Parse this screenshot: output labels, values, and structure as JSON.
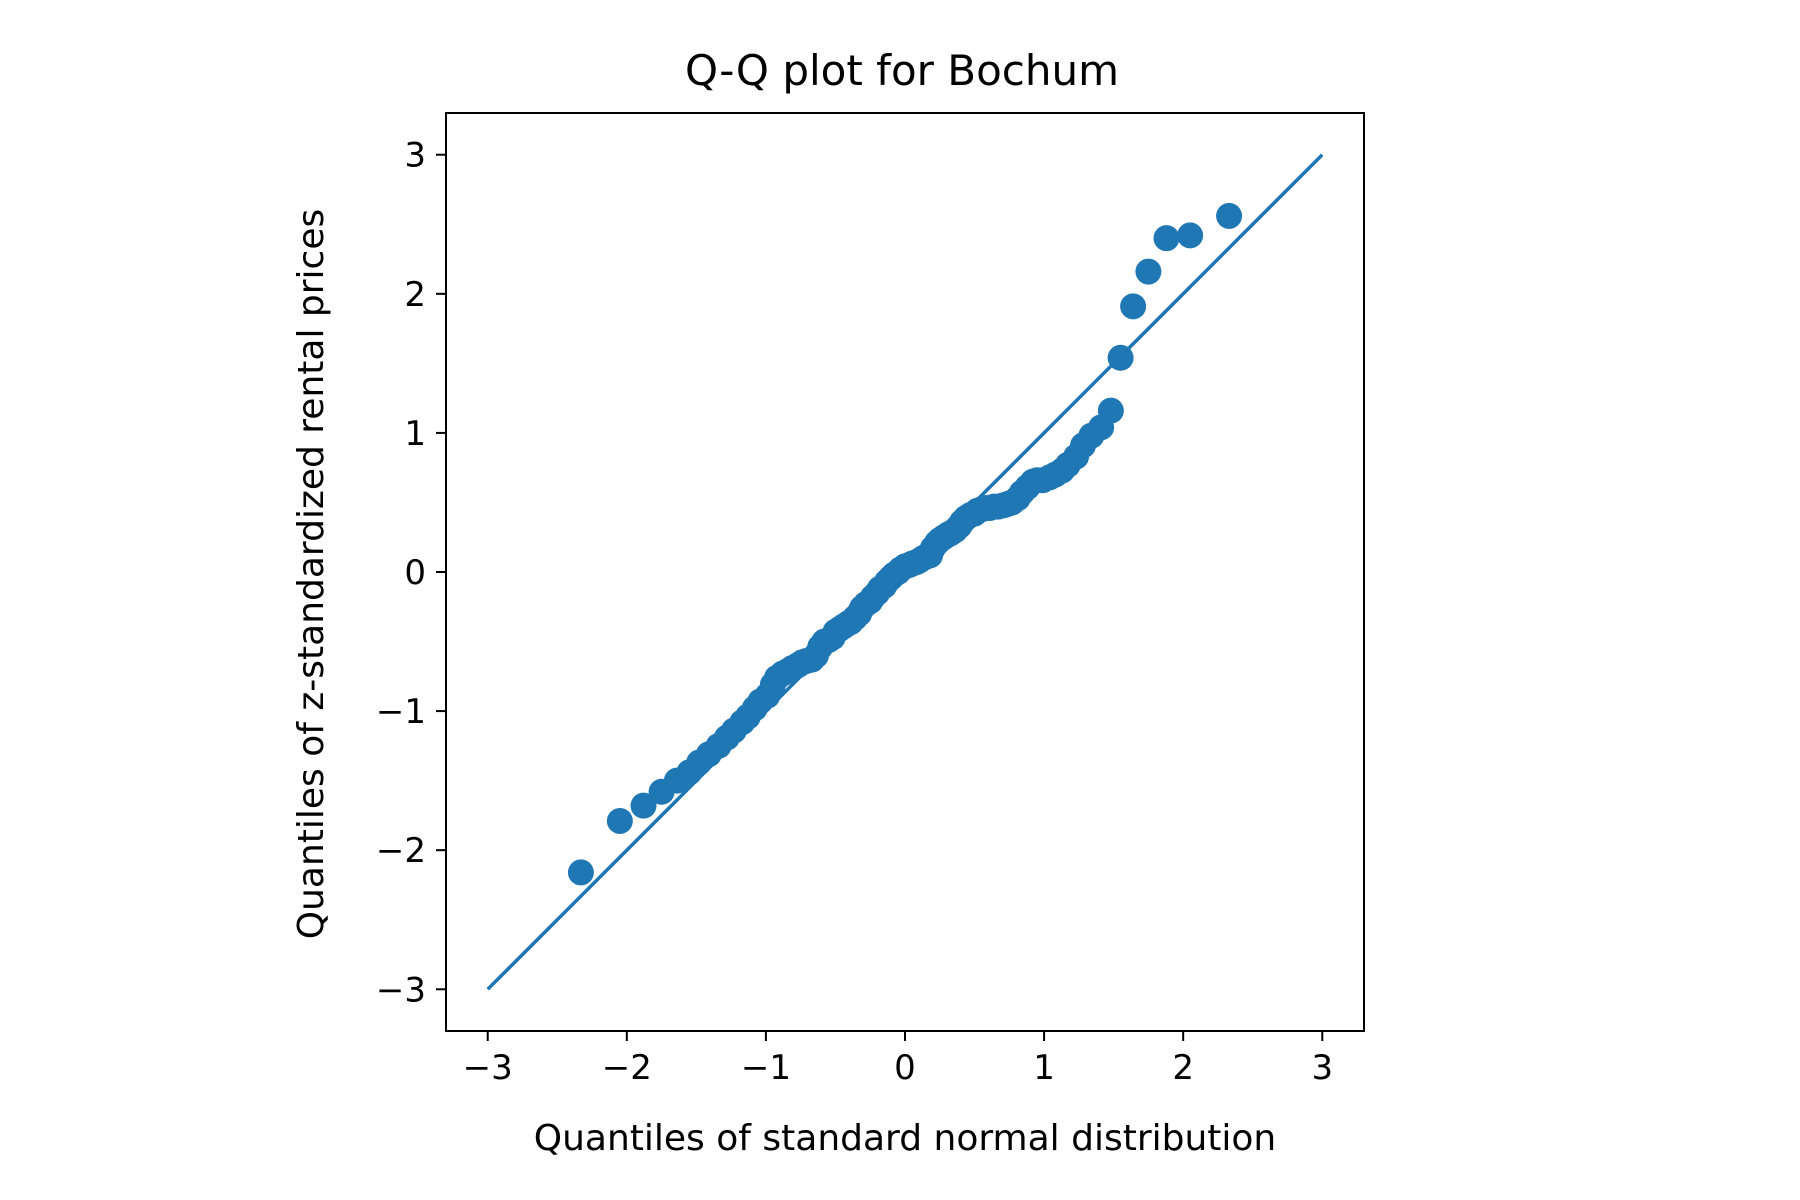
{
  "chart_data": {
    "type": "scatter",
    "title": "Q-Q plot for Bochum",
    "xlabel": "Quantiles of standard normal distribution",
    "ylabel": "Quantiles of z-standardized rental prices",
    "xlim": [
      -3.3,
      3.3
    ],
    "ylim": [
      -3.3,
      3.3
    ],
    "xticks": [
      -3,
      -2,
      -1,
      0,
      1,
      2,
      3
    ],
    "yticks": [
      -3,
      -2,
      -1,
      0,
      1,
      2,
      3
    ],
    "xtick_labels": [
      "−3",
      "−2",
      "−1",
      "0",
      "1",
      "2",
      "3"
    ],
    "ytick_labels": [
      "−3",
      "−2",
      "−1",
      "0",
      "1",
      "2",
      "3"
    ],
    "grid": false,
    "color": "#1f77b4",
    "reference_line": {
      "x": [
        -3,
        3
      ],
      "y": [
        -3,
        3
      ]
    },
    "points": {
      "x": [
        -2.33,
        -2.05,
        -1.88,
        -1.75,
        -1.64,
        -1.55,
        -1.48,
        -1.41,
        -1.34,
        -1.28,
        -1.23,
        -1.17,
        -1.13,
        -1.08,
        -1.04,
        -0.99,
        -0.95,
        -0.92,
        -0.88,
        -0.84,
        -0.81,
        -0.77,
        -0.74,
        -0.71,
        -0.67,
        -0.64,
        -0.61,
        -0.58,
        -0.55,
        -0.52,
        -0.5,
        -0.47,
        -0.44,
        -0.41,
        -0.39,
        -0.36,
        -0.33,
        -0.31,
        -0.28,
        -0.25,
        -0.23,
        -0.2,
        -0.18,
        -0.15,
        -0.13,
        -0.1,
        -0.08,
        -0.05,
        -0.03,
        0.0,
        0.03,
        0.05,
        0.08,
        0.1,
        0.13,
        0.15,
        0.18,
        0.2,
        0.23,
        0.25,
        0.28,
        0.31,
        0.33,
        0.36,
        0.39,
        0.41,
        0.44,
        0.47,
        0.5,
        0.52,
        0.55,
        0.58,
        0.61,
        0.64,
        0.67,
        0.71,
        0.74,
        0.77,
        0.81,
        0.84,
        0.88,
        0.92,
        0.95,
        0.99,
        1.04,
        1.08,
        1.13,
        1.17,
        1.23,
        1.28,
        1.34,
        1.41,
        1.48,
        1.55,
        1.64,
        1.75,
        1.88,
        2.05,
        2.33
      ],
      "y": [
        -2.16,
        -1.79,
        -1.68,
        -1.58,
        -1.5,
        -1.44,
        -1.37,
        -1.31,
        -1.25,
        -1.19,
        -1.14,
        -1.08,
        -1.04,
        -0.98,
        -0.93,
        -0.89,
        -0.81,
        -0.76,
        -0.73,
        -0.71,
        -0.69,
        -0.67,
        -0.65,
        -0.64,
        -0.63,
        -0.6,
        -0.54,
        -0.5,
        -0.49,
        -0.47,
        -0.43,
        -0.41,
        -0.39,
        -0.37,
        -0.36,
        -0.33,
        -0.3,
        -0.26,
        -0.23,
        -0.21,
        -0.18,
        -0.15,
        -0.12,
        -0.1,
        -0.07,
        -0.04,
        -0.02,
        0.0,
        0.02,
        0.04,
        0.05,
        0.06,
        0.07,
        0.08,
        0.1,
        0.11,
        0.12,
        0.17,
        0.21,
        0.23,
        0.25,
        0.27,
        0.28,
        0.3,
        0.33,
        0.36,
        0.39,
        0.41,
        0.42,
        0.44,
        0.45,
        0.46,
        0.46,
        0.47,
        0.47,
        0.48,
        0.49,
        0.5,
        0.53,
        0.57,
        0.61,
        0.65,
        0.66,
        0.66,
        0.68,
        0.7,
        0.73,
        0.77,
        0.83,
        0.91,
        0.98,
        1.04,
        1.16,
        1.54,
        1.91,
        2.16,
        2.4,
        2.42,
        2.56
      ]
    }
  }
}
